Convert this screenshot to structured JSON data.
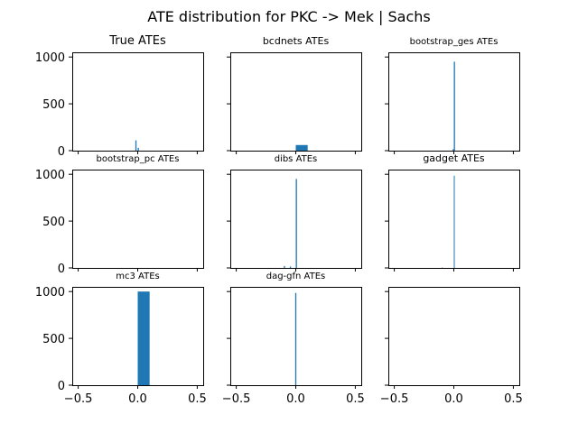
{
  "chart_data": {
    "type": "histogram-grid",
    "title": "ATE distribution for PKC -> Mek | Sachs",
    "xlim": [
      -0.55,
      0.55
    ],
    "ylim": [
      0,
      1050
    ],
    "xticks": [
      -0.5,
      0.0,
      0.5
    ],
    "yticks": [
      0,
      500,
      1000
    ],
    "bar_color": "#1f77b4",
    "panels": [
      {
        "title": "True ATEs",
        "bins": [
          {
            "x0": -0.02,
            "x1": -0.01,
            "count": 110
          },
          {
            "x0": 0.0,
            "x1": 0.01,
            "count": 30
          }
        ]
      },
      {
        "title": "bcdnets ATEs",
        "bins": [
          {
            "x0": 0.0,
            "x1": 0.1,
            "count": 60
          }
        ]
      },
      {
        "title": "bootstrap_ges ATEs",
        "bins": [
          {
            "x0": -0.01,
            "x1": 0.0,
            "count": 15
          },
          {
            "x0": 0.0,
            "x1": 0.01,
            "count": 950
          }
        ]
      },
      {
        "title": "bootstrap_pc ATEs",
        "bins": []
      },
      {
        "title": "dibs ATEs",
        "bins": [
          {
            "x0": -0.1,
            "x1": -0.09,
            "count": 20
          },
          {
            "x0": -0.05,
            "x1": -0.04,
            "count": 15
          },
          {
            "x0": 0.0,
            "x1": 0.01,
            "count": 950
          }
        ]
      },
      {
        "title": "gadget ATEs",
        "bins": [
          {
            "x0": -0.1,
            "x1": -0.095,
            "count": 5
          },
          {
            "x0": 0.0,
            "x1": 0.005,
            "count": 985
          }
        ]
      },
      {
        "title": "mc3 ATEs",
        "bins": [
          {
            "x0": 0.0,
            "x1": 0.1,
            "count": 1000
          }
        ]
      },
      {
        "title": "dag-gfn ATEs",
        "bins": [
          {
            "x0": -0.005,
            "x1": 0.005,
            "count": 985
          }
        ]
      },
      {
        "title": "",
        "bins": []
      }
    ]
  }
}
